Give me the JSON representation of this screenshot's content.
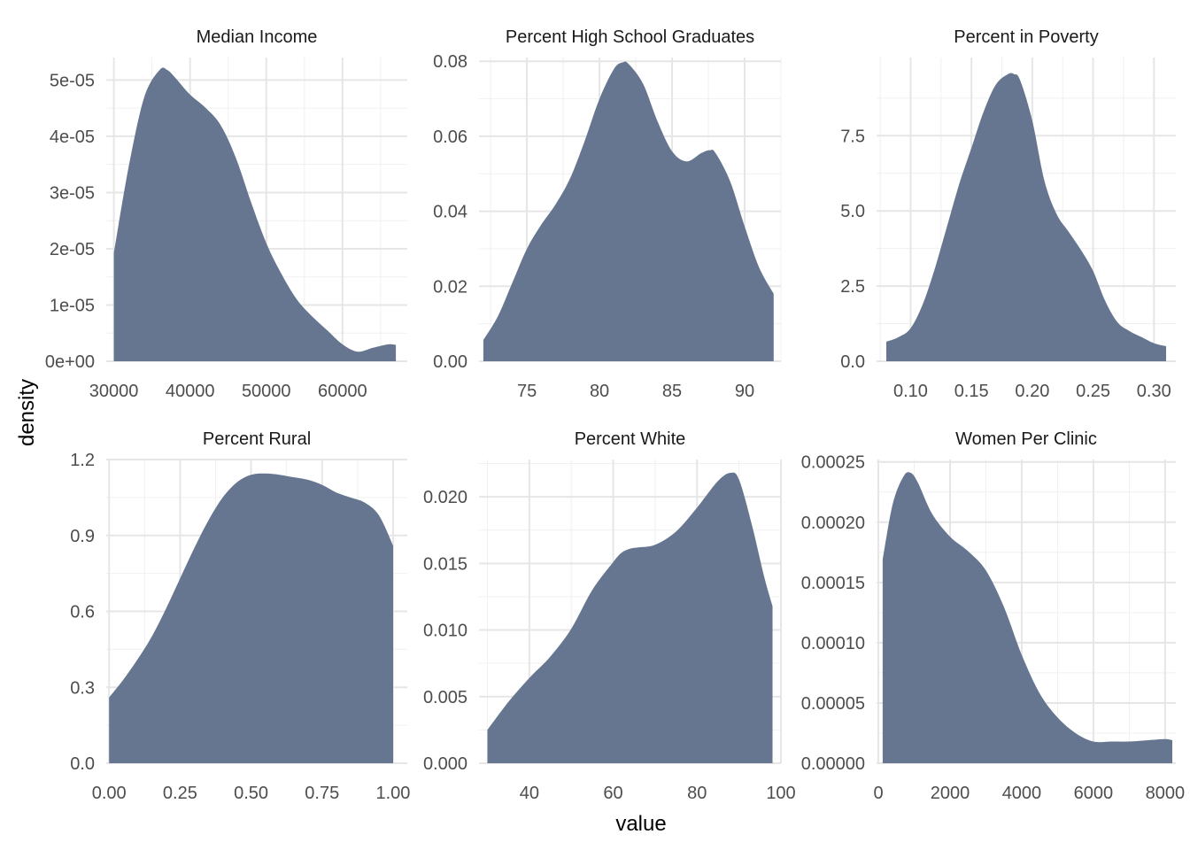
{
  "chart_data": {
    "type": "area",
    "subtype": "density-facets",
    "fill_color": "#667690",
    "xlabel": "value",
    "ylabel": "density",
    "panels": [
      {
        "title": "Median Income",
        "xlim": [
          29000,
          68500
        ],
        "ylim": [
          0,
          5.4e-05
        ],
        "x_ticks": [
          30000,
          40000,
          50000,
          60000
        ],
        "x_tick_labels": [
          "30000",
          "40000",
          "50000",
          "60000"
        ],
        "y_ticks": [
          0,
          1e-05,
          2e-05,
          3e-05,
          4e-05,
          5e-05
        ],
        "y_tick_labels": [
          "0e+00",
          "1e-05",
          "2e-05",
          "3e-05",
          "4e-05",
          "5e-05"
        ],
        "x": [
          30000,
          32000,
          34000,
          36000,
          37000,
          38000,
          40000,
          42000,
          44000,
          46000,
          48000,
          50000,
          52000,
          54000,
          56000,
          58000,
          60000,
          62000,
          64000,
          66000,
          67000
        ],
        "y": [
          1.93e-05,
          3.5e-05,
          4.7e-05,
          5.18e-05,
          5.18e-05,
          5.05e-05,
          4.74e-05,
          4.51e-05,
          4.2e-05,
          3.62e-05,
          2.83e-05,
          2.1e-05,
          1.55e-05,
          1.1e-05,
          8e-06,
          5.5e-06,
          3e-06,
          1.7e-06,
          2.4e-06,
          3e-06,
          2.9e-06
        ]
      },
      {
        "title": "Percent High School Graduates",
        "xlim": [
          71.7,
          92.5
        ],
        "ylim": [
          0,
          0.081
        ],
        "x_ticks": [
          75,
          80,
          85,
          90
        ],
        "x_tick_labels": [
          "75",
          "80",
          "85",
          "90"
        ],
        "y_ticks": [
          0,
          0.02,
          0.04,
          0.06,
          0.08
        ],
        "y_tick_labels": [
          "0.00",
          "0.02",
          "0.04",
          "0.06",
          "0.08"
        ],
        "x": [
          72,
          73,
          74,
          75,
          76,
          77,
          78,
          79,
          80,
          81,
          81.6,
          82,
          83,
          84,
          85,
          86,
          87,
          87.6,
          88,
          89,
          90,
          91,
          92
        ],
        "y": [
          0.0057,
          0.012,
          0.021,
          0.03,
          0.0365,
          0.042,
          0.049,
          0.059,
          0.07,
          0.078,
          0.0797,
          0.0793,
          0.074,
          0.064,
          0.056,
          0.0533,
          0.0555,
          0.0563,
          0.0555,
          0.048,
          0.036,
          0.025,
          0.018
        ]
      },
      {
        "title": "Percent in Poverty",
        "xlim": [
          0.072,
          0.318
        ],
        "ylim": [
          0,
          10.1
        ],
        "x_ticks": [
          0.1,
          0.15,
          0.2,
          0.25,
          0.3
        ],
        "x_tick_labels": [
          "0.10",
          "0.15",
          "0.20",
          "0.25",
          "0.30"
        ],
        "y_ticks": [
          0,
          2.5,
          5.0,
          7.5
        ],
        "y_tick_labels": [
          "0.0",
          "2.5",
          "5.0",
          "7.5"
        ],
        "x": [
          0.08,
          0.09,
          0.1,
          0.11,
          0.12,
          0.13,
          0.14,
          0.15,
          0.16,
          0.17,
          0.18,
          0.185,
          0.19,
          0.2,
          0.21,
          0.22,
          0.23,
          0.24,
          0.25,
          0.26,
          0.27,
          0.28,
          0.29,
          0.3,
          0.31
        ],
        "y": [
          0.65,
          0.8,
          1.1,
          1.9,
          3.1,
          4.5,
          5.9,
          7.1,
          8.3,
          9.2,
          9.55,
          9.55,
          9.35,
          8.0,
          6.0,
          4.9,
          4.3,
          3.7,
          3.0,
          2.0,
          1.3,
          1.0,
          0.8,
          0.6,
          0.5
        ]
      },
      {
        "title": "Percent Rural",
        "xlim": [
          -0.01,
          1.05
        ],
        "ylim": [
          0,
          1.2
        ],
        "x_ticks": [
          0.0,
          0.25,
          0.5,
          0.75,
          1.0
        ],
        "x_tick_labels": [
          "0.00",
          "0.25",
          "0.50",
          "0.75",
          "1.00"
        ],
        "y_ticks": [
          0,
          0.3,
          0.6,
          0.9,
          1.2
        ],
        "y_tick_labels": [
          "0.0",
          "0.3",
          "0.6",
          "0.9",
          "1.2"
        ],
        "x": [
          0.0,
          0.05,
          0.1,
          0.15,
          0.2,
          0.25,
          0.3,
          0.35,
          0.4,
          0.45,
          0.5,
          0.55,
          0.6,
          0.65,
          0.7,
          0.75,
          0.8,
          0.85,
          0.9,
          0.95,
          1.0
        ],
        "y": [
          0.26,
          0.33,
          0.41,
          0.5,
          0.61,
          0.73,
          0.85,
          0.96,
          1.05,
          1.11,
          1.14,
          1.145,
          1.14,
          1.13,
          1.12,
          1.1,
          1.07,
          1.05,
          1.03,
          0.98,
          0.86
        ]
      },
      {
        "title": "Percent White",
        "xlim": [
          28,
          100
        ],
        "ylim": [
          0,
          0.0228
        ],
        "x_ticks": [
          40,
          60,
          80,
          100
        ],
        "x_tick_labels": [
          "40",
          "60",
          "80",
          "100"
        ],
        "y_ticks": [
          0,
          0.005,
          0.01,
          0.015,
          0.02
        ],
        "y_tick_labels": [
          "0.000",
          "0.005",
          "0.010",
          "0.015",
          "0.020"
        ],
        "x": [
          30,
          35,
          40,
          45,
          50,
          55,
          60,
          62,
          64,
          66,
          70,
          75,
          80,
          85,
          88,
          90,
          93,
          96,
          98
        ],
        "y": [
          0.0025,
          0.0046,
          0.0064,
          0.008,
          0.0101,
          0.013,
          0.0151,
          0.0158,
          0.0161,
          0.0162,
          0.0164,
          0.0174,
          0.0192,
          0.0212,
          0.0218,
          0.0213,
          0.018,
          0.014,
          0.0118
        ]
      },
      {
        "title": "Women Per Clinic",
        "xlim": [
          -50,
          8300
        ],
        "ylim": [
          0,
          0.000252
        ],
        "x_ticks": [
          0,
          2000,
          4000,
          6000,
          8000
        ],
        "x_tick_labels": [
          "0",
          "2000",
          "4000",
          "6000",
          "8000"
        ],
        "y_ticks": [
          0,
          5e-05,
          0.0001,
          0.00015,
          0.0002,
          0.00025
        ],
        "y_tick_labels": [
          "0.00000",
          "0.00005",
          "0.00010",
          "0.00015",
          "0.00020",
          "0.00025"
        ],
        "x": [
          120,
          400,
          700,
          900,
          1100,
          1500,
          2000,
          2500,
          3000,
          3500,
          4000,
          4500,
          5000,
          5500,
          6000,
          6500,
          7000,
          7500,
          8000,
          8200
        ],
        "y": [
          0.000169,
          0.000215,
          0.000238,
          0.000241,
          0.000233,
          0.000207,
          0.000188,
          0.000176,
          0.00016,
          0.00013,
          9e-05,
          5.8e-05,
          3.8e-05,
          2.5e-05,
          1.8e-05,
          1.8e-05,
          1.8e-05,
          1.9e-05,
          2e-05,
          1.9e-05
        ]
      }
    ]
  }
}
